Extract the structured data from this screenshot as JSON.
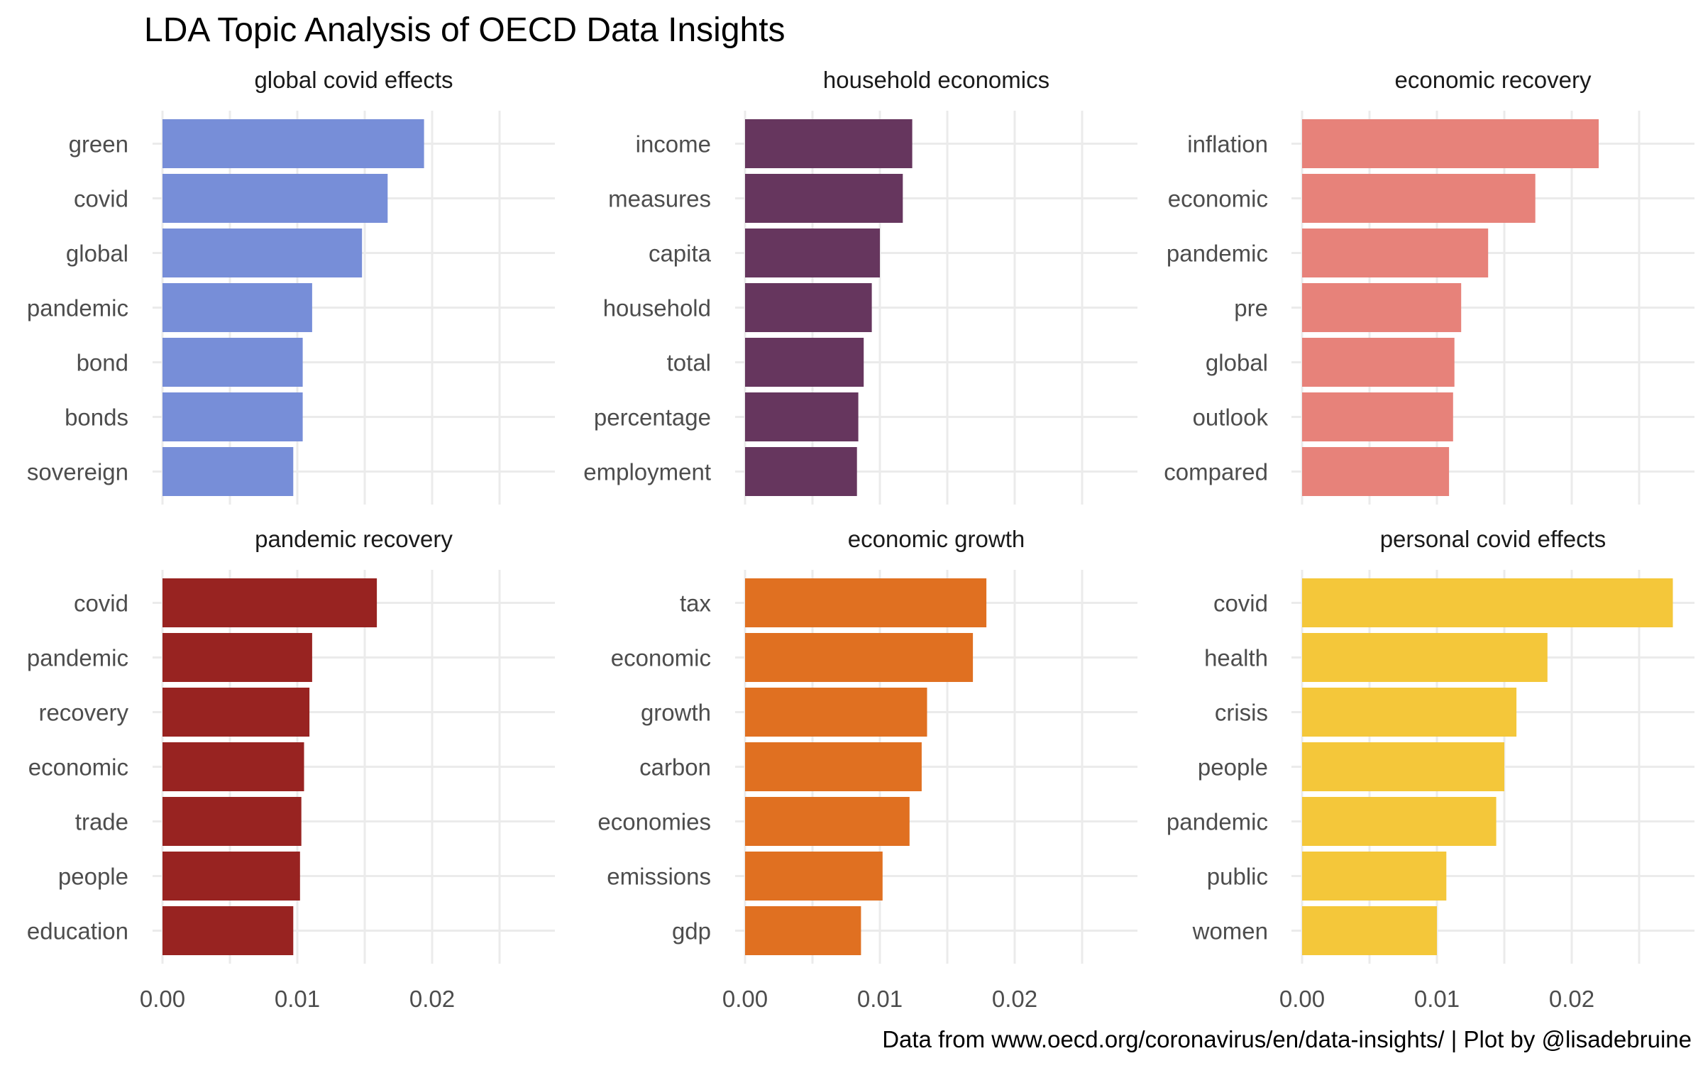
{
  "chart_data": {
    "type": "bar",
    "orientation": "horizontal",
    "title": "LDA Topic Analysis of OECD Data Insights",
    "caption": "Data from www.oecd.org/coronavirus/en/data-insights/ | Plot by @lisadebruine",
    "xlim": [
      0,
      0.029
    ],
    "x_ticks": [
      0,
      0.01,
      0.02
    ],
    "x_tick_labels": [
      "0.00",
      "0.01",
      "0.02"
    ],
    "grid": true,
    "legend": "none",
    "facets": [
      {
        "title": "global covid effects",
        "color": "#778ED8",
        "categories": [
          "green",
          "covid",
          "global",
          "pandemic",
          "bond",
          "bonds",
          "sovereign"
        ],
        "values": [
          0.0194,
          0.0167,
          0.0148,
          0.0111,
          0.0104,
          0.0104,
          0.0097
        ]
      },
      {
        "title": "household economics",
        "color": "#66365E",
        "categories": [
          "income",
          "measures",
          "capita",
          "household",
          "total",
          "percentage",
          "employment"
        ],
        "values": [
          0.0124,
          0.0117,
          0.01,
          0.0094,
          0.0088,
          0.0084,
          0.0083
        ]
      },
      {
        "title": "economic recovery",
        "color": "#E7827A",
        "categories": [
          "inflation",
          "economic",
          "pandemic",
          "pre",
          "global",
          "outlook",
          "compared"
        ],
        "values": [
          0.022,
          0.0173,
          0.0138,
          0.0118,
          0.0113,
          0.0112,
          0.0109
        ]
      },
      {
        "title": "pandemic recovery",
        "color": "#982321",
        "categories": [
          "covid",
          "pandemic",
          "recovery",
          "economic",
          "trade",
          "people",
          "education"
        ],
        "values": [
          0.0159,
          0.0111,
          0.0109,
          0.0105,
          0.0103,
          0.0102,
          0.0097
        ]
      },
      {
        "title": "economic growth",
        "color": "#E07021",
        "categories": [
          "tax",
          "economic",
          "growth",
          "carbon",
          "economies",
          "emissions",
          "gdp"
        ],
        "values": [
          0.0179,
          0.0169,
          0.0135,
          0.0131,
          0.0122,
          0.0102,
          0.0086
        ]
      },
      {
        "title": "personal covid effects",
        "color": "#F4C73A",
        "categories": [
          "covid",
          "health",
          "crisis",
          "people",
          "pandemic",
          "public",
          "women"
        ],
        "values": [
          0.0275,
          0.0182,
          0.0159,
          0.015,
          0.0144,
          0.0107,
          0.01
        ]
      }
    ]
  }
}
